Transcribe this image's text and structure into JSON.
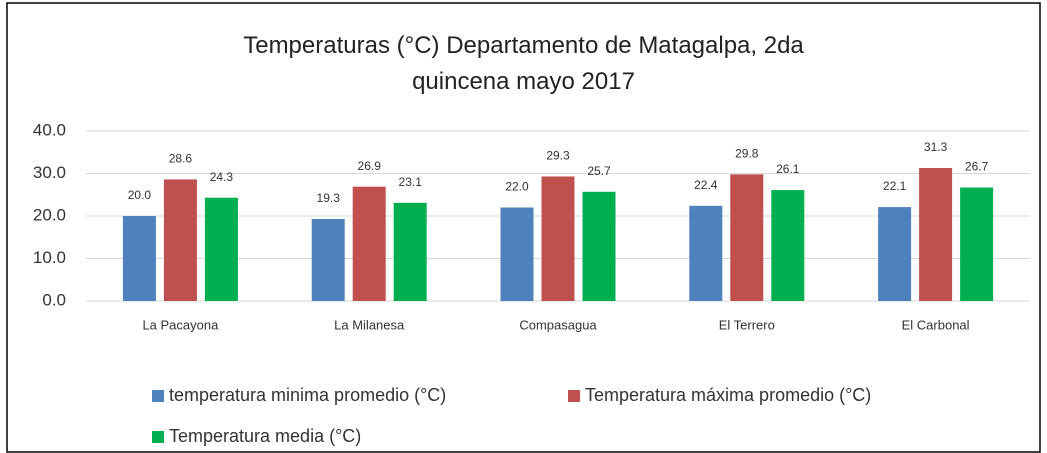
{
  "chart_data": {
    "type": "bar",
    "title": "Temperaturas (°C) Departamento de Matagalpa, 2da quincena mayo 2017",
    "categories": [
      "La Pacayona",
      "La Milanesa",
      "Compasagua",
      "El Terrero",
      "El Carbonal"
    ],
    "series": [
      {
        "name": "temperatura minima promedio (°C)",
        "color": "#4f81bd",
        "values": [
          20.0,
          19.3,
          22.0,
          22.4,
          22.1
        ],
        "value_labels": [
          "20.0",
          "19.3",
          "22.0",
          "22.4",
          "22.1"
        ]
      },
      {
        "name": "Temperatura máxima promedio (°C)",
        "color": "#c0504d",
        "values": [
          28.6,
          26.9,
          29.3,
          29.8,
          31.3
        ],
        "value_labels": [
          "28.6",
          "26.9",
          "29.3",
          "29.8",
          "31.3"
        ]
      },
      {
        "name": "Temperatura media (°C)",
        "color": "#00b050",
        "values": [
          24.3,
          23.1,
          25.7,
          26.1,
          26.7
        ],
        "value_labels": [
          "24.3",
          "23.1",
          "25.7",
          "26.1",
          "26.7"
        ]
      }
    ],
    "ylim": [
      0,
      40
    ],
    "yticks": [
      {
        "value": 0,
        "label": "0.0"
      },
      {
        "value": 10,
        "label": "10.0"
      },
      {
        "value": 20,
        "label": "20.0"
      },
      {
        "value": 30,
        "label": "30.0"
      },
      {
        "value": 40,
        "label": "40.0"
      }
    ],
    "grid": true,
    "legend": "bottom"
  }
}
